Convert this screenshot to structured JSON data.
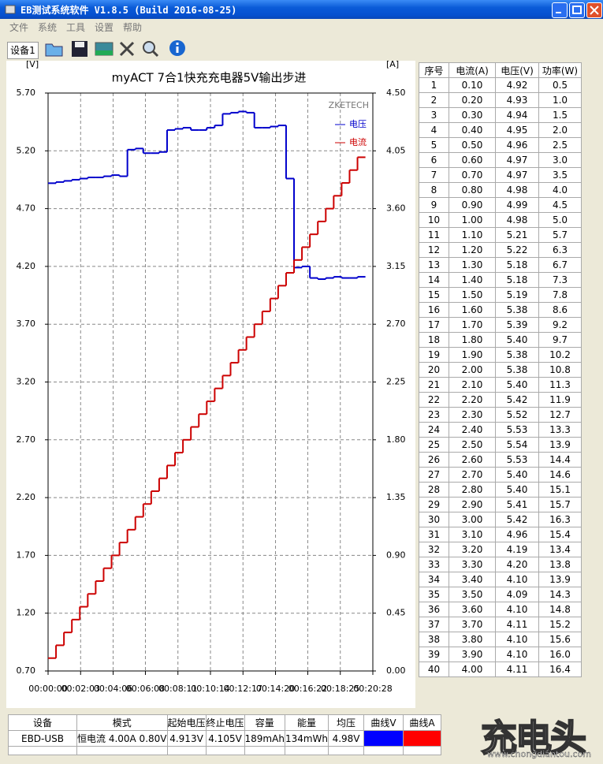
{
  "window": {
    "title": "EB测试系统软件 V1.8.5 (Build 2016-08-25)"
  },
  "menu": [
    "文件",
    "系统",
    "工具",
    "设置",
    "帮助"
  ],
  "toolbar": {
    "tab": "设备1"
  },
  "chart_data": {
    "type": "line",
    "step": true,
    "title": "myACT 7合1快充充电器5V输出步进",
    "annotation": "ZKETECH",
    "y_unit": "[V]",
    "y2_unit": "[A]",
    "grid": true,
    "legend": "upper right",
    "x": [
      0,
      30,
      60,
      90,
      120,
      150,
      180,
      210,
      240,
      270,
      300,
      330,
      360,
      390,
      420,
      450,
      480,
      510,
      540,
      570,
      600,
      630,
      660,
      690,
      720,
      750,
      780,
      810,
      840,
      870,
      900,
      930,
      960,
      990,
      1020,
      1050,
      1080,
      1110,
      1140,
      1170
    ],
    "xlim": [
      0,
      1228
    ],
    "xticks": [
      {
        "value": 0,
        "label": "00:00:00"
      },
      {
        "value": 123,
        "label": "00:02:03"
      },
      {
        "value": 246,
        "label": "00:04:06"
      },
      {
        "value": 368,
        "label": "00:06:08"
      },
      {
        "value": 491,
        "label": "00:08:11"
      },
      {
        "value": 614,
        "label": "00:10:14"
      },
      {
        "value": 737,
        "label": "00:12:17"
      },
      {
        "value": 860,
        "label": "00:14:20"
      },
      {
        "value": 982,
        "label": "00:16:22"
      },
      {
        "value": 1105,
        "label": "00:18:25"
      },
      {
        "value": 1228,
        "label": "00:20:28"
      }
    ],
    "ylim": [
      0.7,
      5.7
    ],
    "yticks": [
      {
        "value": 0.7,
        "label": "0.70"
      },
      {
        "value": 1.2,
        "label": "1.20"
      },
      {
        "value": 1.7,
        "label": "1.70"
      },
      {
        "value": 2.2,
        "label": "2.20"
      },
      {
        "value": 2.7,
        "label": "2.70"
      },
      {
        "value": 3.2,
        "label": "3.20"
      },
      {
        "value": 3.7,
        "label": "3.70"
      },
      {
        "value": 4.2,
        "label": "4.20"
      },
      {
        "value": 4.7,
        "label": "4.70"
      },
      {
        "value": 5.2,
        "label": "5.20"
      },
      {
        "value": 5.7,
        "label": "5.70"
      }
    ],
    "y2lim": [
      0,
      4.5
    ],
    "y2ticks": [
      {
        "value": 0,
        "label": "0.00"
      },
      {
        "value": 0.45,
        "label": "0.45"
      },
      {
        "value": 0.9,
        "label": "0.90"
      },
      {
        "value": 1.35,
        "label": "1.35"
      },
      {
        "value": 1.8,
        "label": "1.80"
      },
      {
        "value": 2.25,
        "label": "2.25"
      },
      {
        "value": 2.7,
        "label": "2.70"
      },
      {
        "value": 3.15,
        "label": "3.15"
      },
      {
        "value": 3.6,
        "label": "3.60"
      },
      {
        "value": 4.05,
        "label": "4.05"
      },
      {
        "value": 4.5,
        "label": "4.50"
      }
    ],
    "series": [
      {
        "name": "电压",
        "color": "#0000cc",
        "values": [
          4.92,
          4.93,
          4.94,
          4.95,
          4.96,
          4.97,
          4.97,
          4.98,
          4.99,
          4.98,
          5.21,
          5.22,
          5.18,
          5.18,
          5.19,
          5.38,
          5.39,
          5.4,
          5.38,
          5.38,
          5.4,
          5.42,
          5.52,
          5.53,
          5.54,
          5.53,
          5.4,
          5.4,
          5.41,
          5.42,
          4.96,
          4.19,
          4.2,
          4.1,
          4.09,
          4.1,
          4.11,
          4.1,
          4.1,
          4.11
        ]
      },
      {
        "name": "电流",
        "color": "#cc0000",
        "axis": "y2",
        "values": [
          0.1,
          0.2,
          0.3,
          0.4,
          0.5,
          0.6,
          0.7,
          0.8,
          0.9,
          1.0,
          1.1,
          1.2,
          1.3,
          1.4,
          1.5,
          1.6,
          1.7,
          1.8,
          1.9,
          2.0,
          2.1,
          2.2,
          2.3,
          2.4,
          2.5,
          2.6,
          2.7,
          2.8,
          2.9,
          3.0,
          3.1,
          3.2,
          3.3,
          3.4,
          3.5,
          3.6,
          3.7,
          3.8,
          3.9,
          4.0
        ]
      }
    ]
  },
  "table": {
    "header": [
      "序号",
      "电流(A)",
      "电压(V)",
      "功率(W)"
    ],
    "rows": [
      [
        "1",
        "0.10",
        "4.92",
        "0.5"
      ],
      [
        "2",
        "0.20",
        "4.93",
        "1.0"
      ],
      [
        "3",
        "0.30",
        "4.94",
        "1.5"
      ],
      [
        "4",
        "0.40",
        "4.95",
        "2.0"
      ],
      [
        "5",
        "0.50",
        "4.96",
        "2.5"
      ],
      [
        "6",
        "0.60",
        "4.97",
        "3.0"
      ],
      [
        "7",
        "0.70",
        "4.97",
        "3.5"
      ],
      [
        "8",
        "0.80",
        "4.98",
        "4.0"
      ],
      [
        "9",
        "0.90",
        "4.99",
        "4.5"
      ],
      [
        "10",
        "1.00",
        "4.98",
        "5.0"
      ],
      [
        "11",
        "1.10",
        "5.21",
        "5.7"
      ],
      [
        "12",
        "1.20",
        "5.22",
        "6.3"
      ],
      [
        "13",
        "1.30",
        "5.18",
        "6.7"
      ],
      [
        "14",
        "1.40",
        "5.18",
        "7.3"
      ],
      [
        "15",
        "1.50",
        "5.19",
        "7.8"
      ],
      [
        "16",
        "1.60",
        "5.38",
        "8.6"
      ],
      [
        "17",
        "1.70",
        "5.39",
        "9.2"
      ],
      [
        "18",
        "1.80",
        "5.40",
        "9.7"
      ],
      [
        "19",
        "1.90",
        "5.38",
        "10.2"
      ],
      [
        "20",
        "2.00",
        "5.38",
        "10.8"
      ],
      [
        "21",
        "2.10",
        "5.40",
        "11.3"
      ],
      [
        "22",
        "2.20",
        "5.42",
        "11.9"
      ],
      [
        "23",
        "2.30",
        "5.52",
        "12.7"
      ],
      [
        "24",
        "2.40",
        "5.53",
        "13.3"
      ],
      [
        "25",
        "2.50",
        "5.54",
        "13.9"
      ],
      [
        "26",
        "2.60",
        "5.53",
        "14.4"
      ],
      [
        "27",
        "2.70",
        "5.40",
        "14.6"
      ],
      [
        "28",
        "2.80",
        "5.40",
        "15.1"
      ],
      [
        "29",
        "2.90",
        "5.41",
        "15.7"
      ],
      [
        "30",
        "3.00",
        "5.42",
        "16.3"
      ],
      [
        "31",
        "3.10",
        "4.96",
        "15.4"
      ],
      [
        "32",
        "3.20",
        "4.19",
        "13.4"
      ],
      [
        "33",
        "3.30",
        "4.20",
        "13.8"
      ],
      [
        "34",
        "3.40",
        "4.10",
        "13.9"
      ],
      [
        "35",
        "3.50",
        "4.09",
        "14.3"
      ],
      [
        "36",
        "3.60",
        "4.10",
        "14.8"
      ],
      [
        "37",
        "3.70",
        "4.11",
        "15.2"
      ],
      [
        "38",
        "3.80",
        "4.10",
        "15.6"
      ],
      [
        "39",
        "3.90",
        "4.10",
        "16.0"
      ],
      [
        "40",
        "4.00",
        "4.11",
        "16.4"
      ]
    ]
  },
  "status_table": {
    "header": [
      "设备",
      "模式",
      "起始电压",
      "终止电压",
      "容量",
      "能量",
      "均压",
      "曲线V",
      "曲线A"
    ],
    "row": [
      "EBD-USB",
      "恒电流 4.00A 0.80V",
      "4.913V",
      "4.105V",
      "189mAh",
      "134mWh",
      "4.98V"
    ],
    "curve_colors": [
      "#0000ff",
      "#ff0000"
    ]
  },
  "watermark": {
    "logo": "充电头",
    "url": "www.chongdiantou.com"
  }
}
